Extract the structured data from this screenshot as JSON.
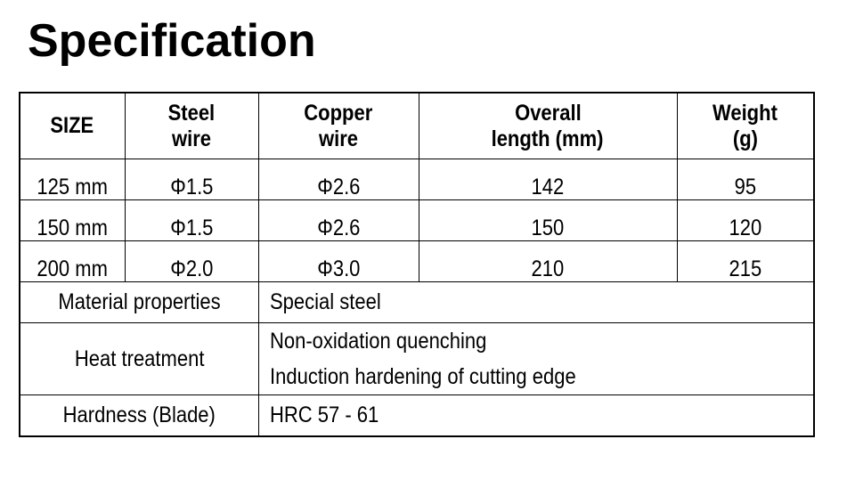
{
  "title": "Specification",
  "table": {
    "headers": [
      [
        "SIZE"
      ],
      [
        "Steel",
        "wire"
      ],
      [
        "Copper",
        "wire"
      ],
      [
        "Overall",
        "length (mm)"
      ],
      [
        "Weight",
        "(g)"
      ]
    ],
    "rows": [
      [
        "125 mm",
        "Φ1.5",
        "Φ2.6",
        "142",
        "95"
      ],
      [
        "150 mm",
        "Φ1.5",
        "Φ2.6",
        "150",
        "120"
      ],
      [
        "200 mm",
        "Φ2.0",
        "Φ3.0",
        "210",
        "215"
      ]
    ],
    "properties": [
      {
        "label": "Material properties",
        "values": [
          "Special steel"
        ]
      },
      {
        "label": "Heat treatment",
        "values": [
          "Non-oxidation quenching",
          "Induction hardening of cutting edge"
        ]
      },
      {
        "label": "Hardness (Blade)",
        "values": [
          "HRC 57 - 61"
        ]
      }
    ]
  }
}
